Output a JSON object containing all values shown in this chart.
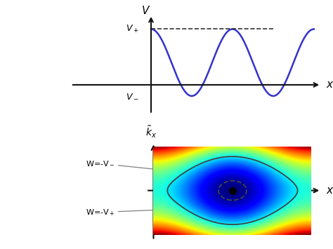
{
  "fig_width": 4.74,
  "fig_height": 3.55,
  "dpi": 100,
  "bg_color": "#ffffff",
  "top_panel": {
    "v_plus": 0.75,
    "v_minus": -0.15,
    "curve_color": "#3333cc",
    "dashed_color": "#333333",
    "axis_color": "#111111"
  },
  "bottom_panel": {
    "contour_color": "#444444",
    "dot_color": "#000000",
    "axis_color": "#111111",
    "v_plus_val": 0.75,
    "v_minus_val": -0.15
  }
}
